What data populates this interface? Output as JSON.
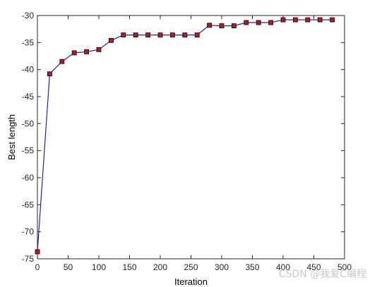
{
  "chart_data": {
    "type": "line",
    "title": "",
    "xlabel": "Iteration",
    "ylabel": "Best length",
    "xlim": [
      0,
      500
    ],
    "ylim": [
      -75,
      -30
    ],
    "xticks": [
      0,
      50,
      100,
      150,
      200,
      250,
      300,
      350,
      400,
      450,
      500
    ],
    "yticks": [
      -75,
      -70,
      -65,
      -60,
      -55,
      -50,
      -45,
      -40,
      -35,
      -30
    ],
    "grid": false,
    "line_color": "#1f1fbf",
    "marker_face_color": "#c0141e",
    "marker_edge_color": "#000000",
    "marker": "square",
    "series": [
      {
        "x": [
          0,
          20,
          40,
          60,
          80,
          100,
          120,
          140,
          160,
          180,
          200,
          220,
          240,
          260,
          280,
          300,
          320,
          340,
          360,
          380,
          400,
          420,
          440,
          460,
          480
        ],
        "y": [
          -73.7,
          -40.8,
          -38.5,
          -36.9,
          -36.7,
          -36.3,
          -34.6,
          -33.6,
          -33.6,
          -33.6,
          -33.6,
          -33.6,
          -33.6,
          -33.6,
          -31.8,
          -31.9,
          -31.9,
          -31.3,
          -31.3,
          -31.3,
          -30.8,
          -30.8,
          -30.8,
          -30.8,
          -30.8
        ]
      }
    ]
  },
  "watermark": {
    "text": "CSDN @我爱C编程"
  }
}
